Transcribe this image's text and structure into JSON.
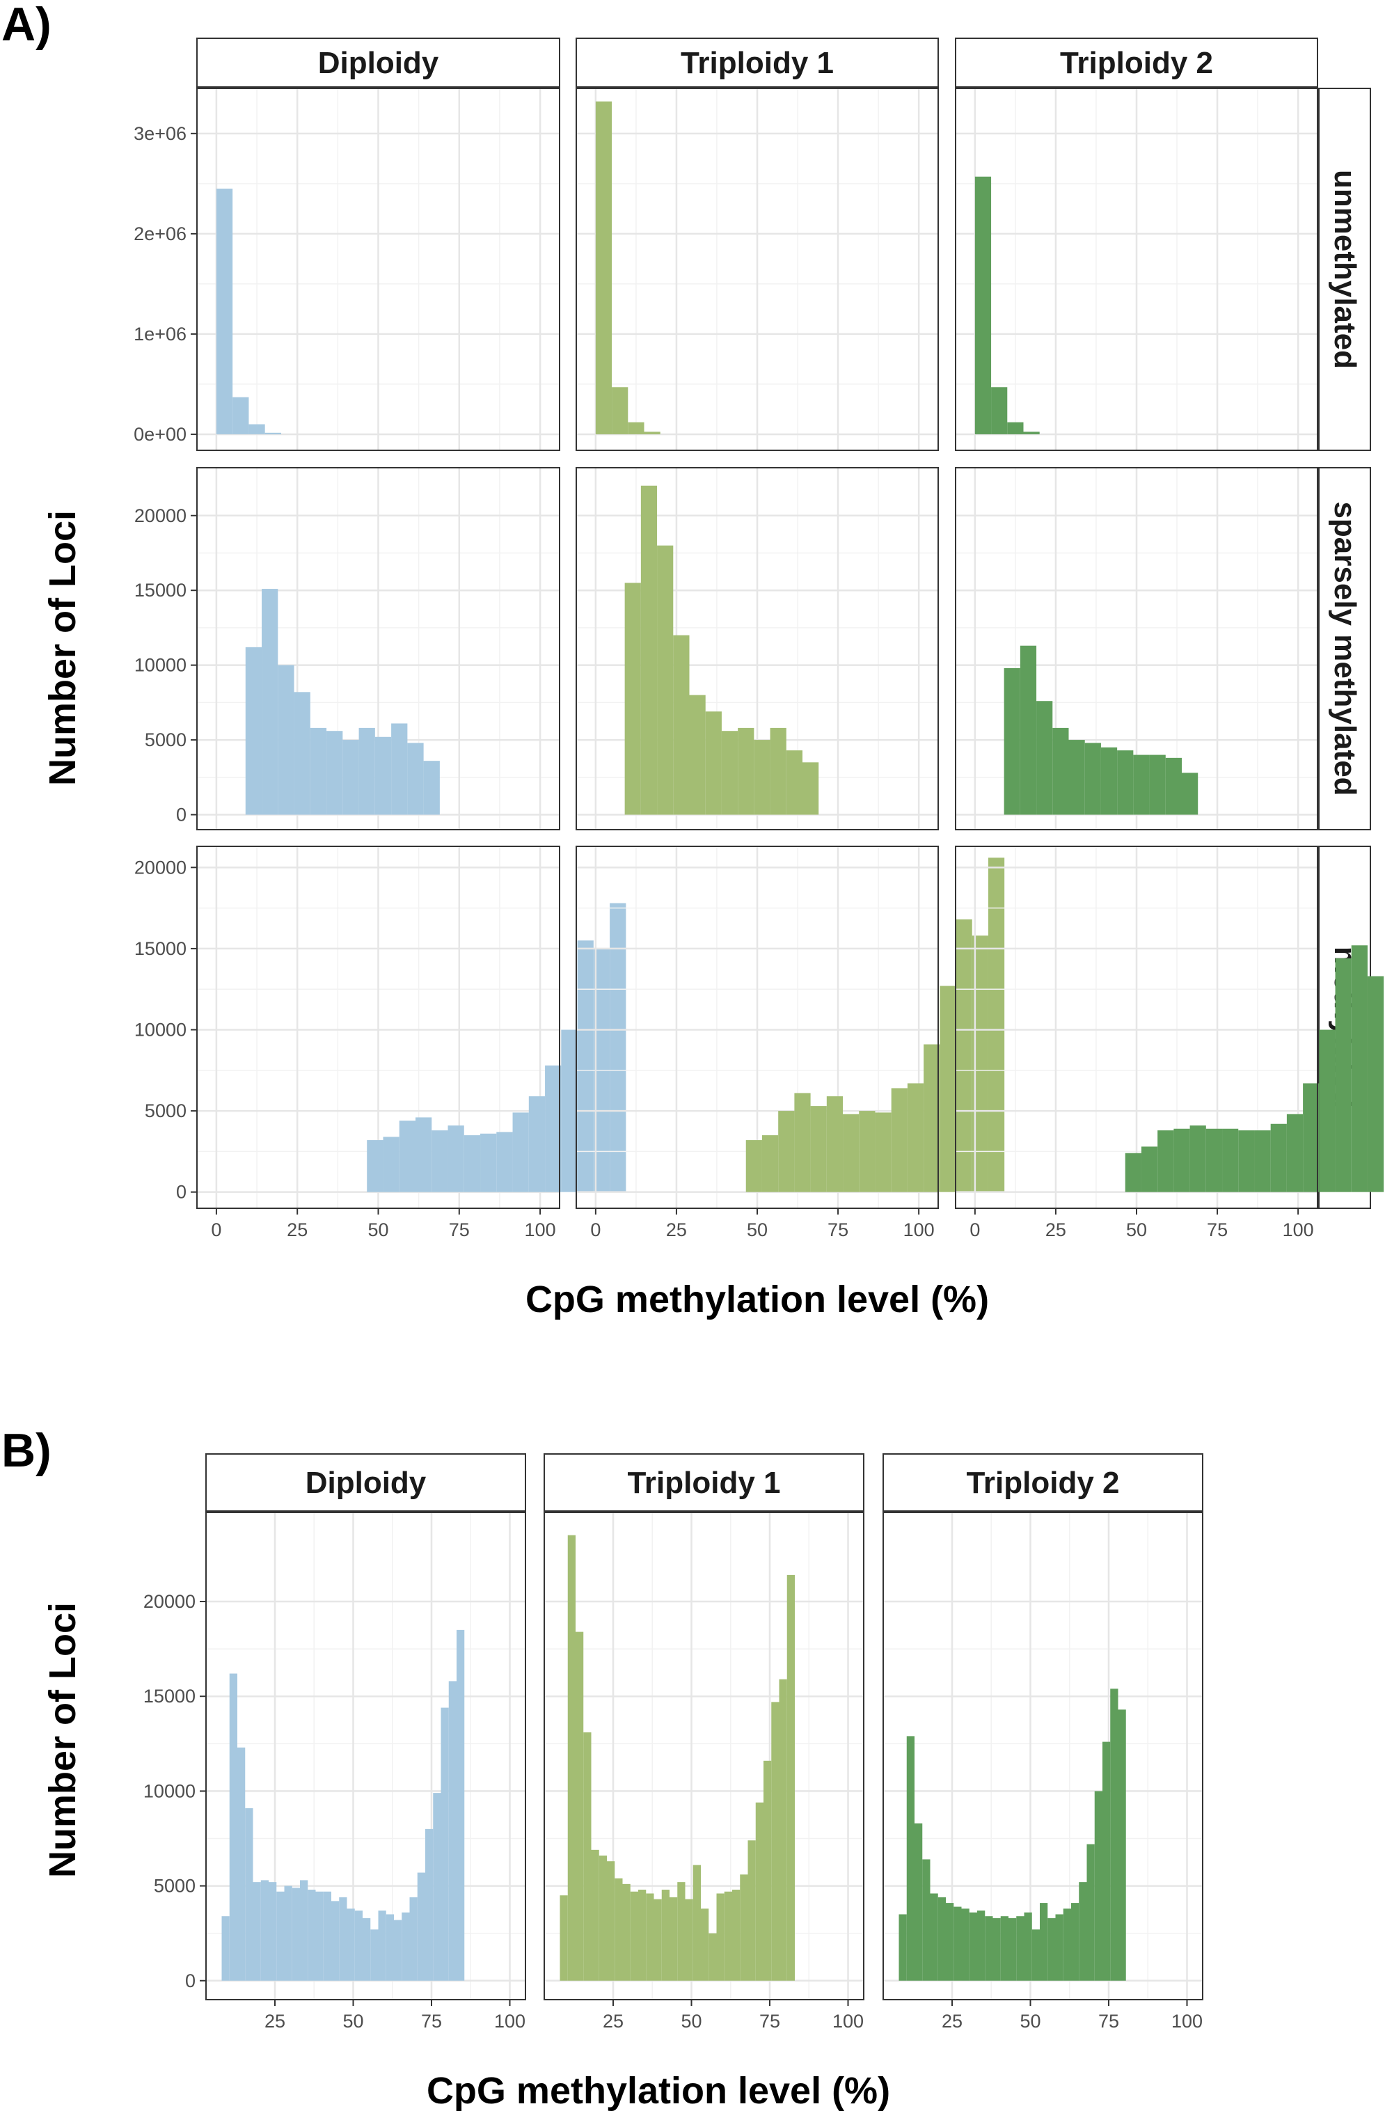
{
  "colors": {
    "diploidy": "#a6c8e0",
    "triploidy1": "#a3bd73",
    "triploidy2": "#5f9e5b"
  },
  "chart_data": [
    {
      "type": "bar",
      "panel_label": "A)",
      "facet_columns": [
        "Diploidy",
        "Triploidy 1",
        "Triploidy 2"
      ],
      "facet_rows": [
        "unmethylated",
        "sparsely methylated",
        "methylated"
      ],
      "xlabel": "CpG methylation level (%)",
      "ylabel": "Number of Loci",
      "xlim": [
        -6,
        106
      ],
      "x_ticks": [
        0,
        25,
        50,
        75,
        100
      ],
      "bin_width": 5,
      "grid": true,
      "rows": [
        {
          "name": "unmethylated",
          "ylim": [
            -160000,
            3450000
          ],
          "y_ticks": [
            0,
            1000000,
            2000000,
            3000000
          ],
          "y_tick_labels": [
            "0e+00",
            "1e+06",
            "2e+06",
            "3e+06"
          ],
          "start": 0,
          "series": [
            {
              "name": "Diploidy",
              "values": [
                2450000,
                370000,
                100000,
                15000
              ]
            },
            {
              "name": "Triploidy 1",
              "values": [
                3320000,
                470000,
                120000,
                25000
              ]
            },
            {
              "name": "Triploidy 2",
              "values": [
                2570000,
                470000,
                120000,
                25000
              ]
            }
          ]
        },
        {
          "name": "sparsely methylated",
          "ylim": [
            -1000,
            23200
          ],
          "y_ticks": [
            0,
            5000,
            10000,
            15000,
            20000
          ],
          "y_tick_labels": [
            "0",
            "5000",
            "10000",
            "15000",
            "20000"
          ],
          "start": 9,
          "series": [
            {
              "name": "Diploidy",
              "values": [
                11200,
                15100,
                10000,
                8200,
                5800,
                5600,
                5000,
                5800,
                5200,
                6100,
                4800,
                3600
              ]
            },
            {
              "name": "Triploidy 1",
              "values": [
                15500,
                22000,
                18000,
                12000,
                8000,
                6900,
                5600,
                5800,
                5000,
                5800,
                4300,
                3500
              ]
            },
            {
              "name": "Triploidy 2",
              "values": [
                9800,
                11300,
                7600,
                5800,
                5000,
                4800,
                4500,
                4300,
                4000,
                4000,
                3800,
                2800
              ]
            }
          ]
        },
        {
          "name": "methylated",
          "ylim": [
            -1000,
            21300
          ],
          "y_ticks": [
            0,
            5000,
            10000,
            15000,
            20000
          ],
          "y_tick_labels": [
            "0",
            "5000",
            "10000",
            "15000",
            "20000"
          ],
          "start": 46.5,
          "series": [
            {
              "name": "Diploidy",
              "values": [
                3200,
                3400,
                4400,
                4600,
                3800,
                4100,
                3500,
                3600,
                3700,
                4900,
                5900,
                7800,
                10000,
                15500,
                15000,
                17800
              ]
            },
            {
              "name": "Triploidy 1",
              "values": [
                3200,
                3500,
                5000,
                6100,
                5300,
                5900,
                4800,
                5000,
                4900,
                6400,
                6700,
                9100,
                12700,
                16800,
                15800,
                20600
              ]
            },
            {
              "name": "Triploidy 2",
              "values": [
                2400,
                2800,
                3800,
                3900,
                4100,
                3900,
                3900,
                3800,
                3800,
                4200,
                4800,
                6700,
                10000,
                14400,
                15200,
                13300
              ]
            }
          ]
        }
      ]
    },
    {
      "type": "bar",
      "panel_label": "B)",
      "facet_columns": [
        "Diploidy",
        "Triploidy 1",
        "Triploidy 2"
      ],
      "xlabel": "CpG methylation level (%)",
      "ylabel": "Number of Loci",
      "xlim": [
        3,
        105
      ],
      "x_ticks": [
        25,
        50,
        75,
        100
      ],
      "bin_width": 2.5,
      "start": 8,
      "ylim": [
        -1000,
        24700
      ],
      "y_ticks": [
        0,
        5000,
        10000,
        15000,
        20000
      ],
      "y_tick_labels": [
        "0",
        "5000",
        "10000",
        "15000",
        "20000"
      ],
      "grid": true,
      "series": [
        {
          "name": "Diploidy",
          "values": [
            3400,
            16200,
            12300,
            9100,
            5200,
            5300,
            5200,
            4700,
            5000,
            4900,
            5300,
            4800,
            4700,
            4700,
            4200,
            4400,
            3800,
            3700,
            3300,
            2700,
            3700,
            3500,
            3200,
            3600,
            4400,
            5700,
            8000,
            9900,
            14400,
            15800,
            18500
          ]
        },
        {
          "name": "Triploidy 1",
          "values": [
            4500,
            23500,
            18400,
            13100,
            6900,
            6600,
            6300,
            5400,
            5100,
            4700,
            4800,
            4600,
            4300,
            4800,
            4400,
            5200,
            4300,
            6100,
            3800,
            2500,
            4600,
            4700,
            4800,
            5600,
            7400,
            9400,
            11600,
            14700,
            15900,
            21400
          ]
        },
        {
          "name": "Triploidy 2",
          "values": [
            3500,
            12900,
            8300,
            6400,
            4600,
            4400,
            4100,
            3900,
            3800,
            3600,
            3700,
            3400,
            3300,
            3400,
            3300,
            3400,
            3600,
            2700,
            4100,
            3300,
            3500,
            3800,
            4100,
            5200,
            7200,
            10000,
            12600,
            15400,
            14300
          ]
        }
      ]
    }
  ]
}
